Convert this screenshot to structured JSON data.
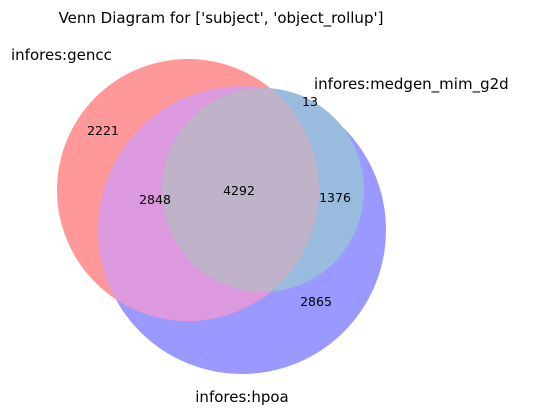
{
  "title": "Venn Diagram for ['subject', 'object_rollup']",
  "sets": [
    {
      "label": "infores:gencc",
      "color": "#ff9999"
    },
    {
      "label": "infores:medgen_mim_g2d",
      "color": "#99bbdd"
    },
    {
      "label": "infores:hpoa",
      "color": "#9999ff"
    }
  ],
  "regions": {
    "gencc_only": "2221",
    "medgen_only": "13",
    "hpoa_only": "2865",
    "gencc_hpoa": "2848",
    "medgen_hpoa": "1376",
    "all_three": "4292"
  },
  "colors": {
    "gencc_hpoa": "#dd99dd",
    "all_three": "#c0b2c8"
  }
}
